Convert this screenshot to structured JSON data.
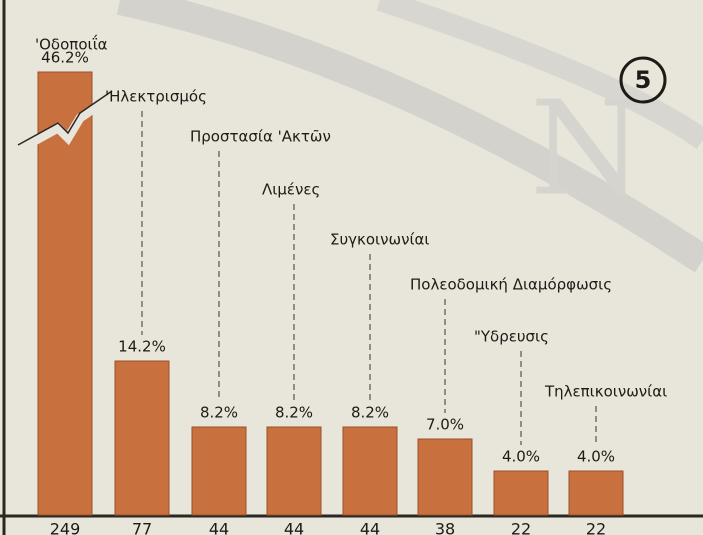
{
  "chart_data": {
    "type": "bar",
    "annotation": "5",
    "categories": [
      "'Οδοποιΐα",
      "'Ηλεκτρισμός",
      "Προστασία 'Ακτῶν",
      "Λιμένες",
      "Συγκοινωνίαι",
      "Πολεοδομική Διαμόρφωσις",
      "\"Υδρευσις",
      "Τηλεπικοινωνίαι"
    ],
    "values": [
      249,
      77,
      44,
      44,
      44,
      38,
      22,
      22
    ],
    "shares": [
      46.2,
      14.2,
      8.2,
      8.2,
      8.2,
      7.0,
      4.0,
      4.0
    ],
    "share_labels": [
      "46.2%",
      "14.2%",
      "8.2%",
      "8.2%",
      "8.2%",
      "7.0%",
      "4.0%",
      "4.0%"
    ],
    "color": "#c8703e"
  }
}
